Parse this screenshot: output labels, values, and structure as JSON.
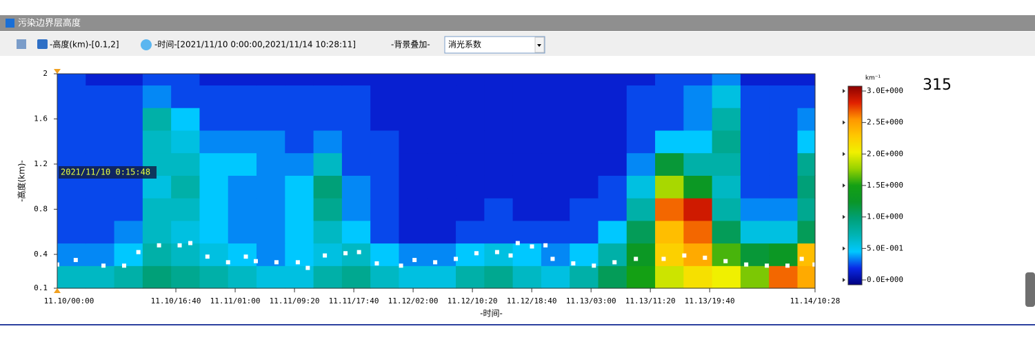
{
  "window": {
    "title": "污染边界层高度"
  },
  "toolbar": {
    "height_range": "-高度(km)-[0.1,2]",
    "time_range": "-时间-[2021/11/10 0:00:00,2021/11/14 10:28:11]",
    "overlay_label": "-背景叠加-",
    "overlay_value": "消光系数"
  },
  "counter": 315,
  "chart_data": {
    "type": "heatmap",
    "x_label": "-时间-",
    "y_label": "-高度(km)-",
    "annotation": "2021/11/10 0:15:48",
    "xlim": [
      0,
      106.47
    ],
    "ylim": [
      0.1,
      2
    ],
    "xticks": [
      {
        "value": 0,
        "label": "11.10/00:00"
      },
      {
        "value": 16.667,
        "label": "11.10/16:40"
      },
      {
        "value": 25,
        "label": "11.11/01:00"
      },
      {
        "value": 33.333,
        "label": "11.11/09:20"
      },
      {
        "value": 41.667,
        "label": "11.11/17:40"
      },
      {
        "value": 50,
        "label": "11.12/02:00"
      },
      {
        "value": 58.333,
        "label": "11.12/10:20"
      },
      {
        "value": 66.667,
        "label": "11.12/18:40"
      },
      {
        "value": 75,
        "label": "11.13/03:00"
      },
      {
        "value": 83.333,
        "label": "11.13/11:20"
      },
      {
        "value": 91.667,
        "label": "11.13/19:40"
      },
      {
        "value": 106.47,
        "label": "11.14/10:28"
      }
    ],
    "yticks": [
      0.1,
      0.4,
      0.8,
      1.2,
      1.6,
      2
    ],
    "xbins": [
      0,
      4,
      8,
      12,
      16,
      20,
      24,
      28,
      32,
      36,
      40,
      44,
      48,
      52,
      56,
      60,
      64,
      68,
      72,
      76,
      80,
      84,
      88,
      92,
      96,
      100,
      104,
      106.47
    ],
    "ybins": [
      0.1,
      0.3,
      0.5,
      0.7,
      0.9,
      1.1,
      1.3,
      1.5,
      1.7,
      1.9,
      2.0
    ],
    "z": [
      [
        0.7,
        0.7,
        0.8,
        1.0,
        0.9,
        0.8,
        0.7,
        0.6,
        0.6,
        0.8,
        0.9,
        0.7,
        0.6,
        0.6,
        0.8,
        0.9,
        0.7,
        0.6,
        0.8,
        1.1,
        1.5,
        1.9,
        2.1,
        2.0,
        1.7,
        2.6,
        2.4
      ],
      [
        0.4,
        0.4,
        0.5,
        0.8,
        0.7,
        0.6,
        0.5,
        0.4,
        0.5,
        0.6,
        0.7,
        0.5,
        0.4,
        0.4,
        0.5,
        0.6,
        0.5,
        0.4,
        0.5,
        0.8,
        1.3,
        2.2,
        2.4,
        1.6,
        1.2,
        1.3,
        2.3
      ],
      [
        0.3,
        0.3,
        0.4,
        0.7,
        0.6,
        0.5,
        0.4,
        0.4,
        0.5,
        0.7,
        0.5,
        0.3,
        0.2,
        0.2,
        0.3,
        0.3,
        0.3,
        0.3,
        0.3,
        0.5,
        1.1,
        2.3,
        2.6,
        1.1,
        0.6,
        0.6,
        1.1
      ],
      [
        0.3,
        0.3,
        0.3,
        0.7,
        0.7,
        0.5,
        0.4,
        0.4,
        0.5,
        0.9,
        0.4,
        0.3,
        0.2,
        0.2,
        0.2,
        0.3,
        0.2,
        0.2,
        0.3,
        0.3,
        0.8,
        2.6,
        2.8,
        0.8,
        0.4,
        0.4,
        0.9
      ],
      [
        0.3,
        0.3,
        0.3,
        0.6,
        0.8,
        0.5,
        0.4,
        0.4,
        0.5,
        1.0,
        0.4,
        0.3,
        0.2,
        0.2,
        0.2,
        0.2,
        0.2,
        0.2,
        0.2,
        0.3,
        0.6,
        1.8,
        1.3,
        0.7,
        0.3,
        0.3,
        1.0
      ],
      [
        0.3,
        0.3,
        0.3,
        0.7,
        0.7,
        0.5,
        0.5,
        0.4,
        0.4,
        0.7,
        0.3,
        0.3,
        0.2,
        0.2,
        0.2,
        0.2,
        0.2,
        0.2,
        0.2,
        0.2,
        0.4,
        1.2,
        0.8,
        0.8,
        0.3,
        0.3,
        0.9
      ],
      [
        0.3,
        0.3,
        0.3,
        0.7,
        0.6,
        0.4,
        0.4,
        0.4,
        0.3,
        0.4,
        0.3,
        0.3,
        0.2,
        0.2,
        0.2,
        0.2,
        0.2,
        0.2,
        0.2,
        0.2,
        0.3,
        0.5,
        0.5,
        0.9,
        0.3,
        0.3,
        0.5
      ],
      [
        0.3,
        0.3,
        0.3,
        0.8,
        0.5,
        0.3,
        0.3,
        0.3,
        0.3,
        0.3,
        0.3,
        0.2,
        0.2,
        0.2,
        0.2,
        0.2,
        0.2,
        0.2,
        0.2,
        0.2,
        0.3,
        0.3,
        0.4,
        0.8,
        0.3,
        0.3,
        0.4
      ],
      [
        0.3,
        0.3,
        0.3,
        0.4,
        0.3,
        0.3,
        0.3,
        0.3,
        0.3,
        0.3,
        0.3,
        0.2,
        0.2,
        0.2,
        0.2,
        0.2,
        0.2,
        0.2,
        0.2,
        0.2,
        0.3,
        0.3,
        0.4,
        0.6,
        0.3,
        0.3,
        0.3
      ],
      [
        0.3,
        0.2,
        0.2,
        0.3,
        0.3,
        0.2,
        0.2,
        0.2,
        0.2,
        0.2,
        0.2,
        0.2,
        0.2,
        0.2,
        0.2,
        0.2,
        0.2,
        0.2,
        0.2,
        0.2,
        0.2,
        0.3,
        0.3,
        0.4,
        0.2,
        0.2,
        0.2
      ]
    ],
    "colormap": [
      "#00007f",
      "#0a28e6",
      "#00c8ff",
      "#00b4b4",
      "#00a078",
      "#0a9628",
      "#14a014",
      "#96d200",
      "#f0f000",
      "#ffc800",
      "#ff9600",
      "#e02000",
      "#8b0000"
    ],
    "colorbar": {
      "label": "km⁻¹",
      "lim": [
        0,
        3
      ],
      "ticks": [
        {
          "value": 0,
          "label": "0.0E+000"
        },
        {
          "value": 0.5,
          "label": "5.0E-001"
        },
        {
          "value": 1,
          "label": "1.0E+000"
        },
        {
          "value": 1.5,
          "label": "1.5E+000"
        },
        {
          "value": 2,
          "label": "2.0E+000"
        },
        {
          "value": 2.5,
          "label": "2.5E+000"
        },
        {
          "value": 3,
          "label": "3.0E+000"
        }
      ]
    },
    "boundary_layer": {
      "color": "#ffffff",
      "x": [
        0,
        2.6,
        6.5,
        9.4,
        11.4,
        14.3,
        17.2,
        18.7,
        21.1,
        24,
        26.5,
        27.9,
        30.8,
        33.8,
        35.2,
        37.6,
        40.5,
        42.4,
        44.9,
        48.3,
        50.2,
        53.1,
        56,
        58.9,
        61.8,
        63.7,
        64.7,
        66.7,
        68.6,
        69.6,
        72.5,
        75.4,
        78.3,
        81.3,
        85.2,
        88.1,
        91,
        93.9,
        96.8,
        99.7,
        102.6,
        104.6,
        106.4
      ],
      "values": [
        0.31,
        0.35,
        0.3,
        0.3,
        0.42,
        0.48,
        0.48,
        0.5,
        0.38,
        0.33,
        0.38,
        0.34,
        0.33,
        0.33,
        0.28,
        0.39,
        0.41,
        0.42,
        0.32,
        0.3,
        0.35,
        0.33,
        0.36,
        0.41,
        0.42,
        0.39,
        0.5,
        0.47,
        0.48,
        0.36,
        0.32,
        0.3,
        0.33,
        0.36,
        0.36,
        0.39,
        0.37,
        0.34,
        0.31,
        0.3,
        0.3,
        0.36,
        0.31
      ]
    }
  }
}
